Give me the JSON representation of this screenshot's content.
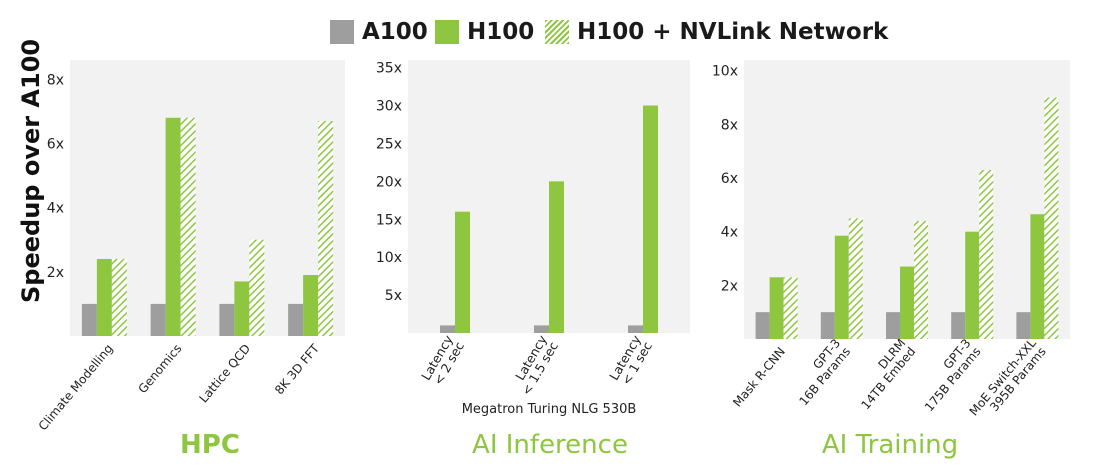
{
  "legend": {
    "items": [
      {
        "label": "A100",
        "color": "#9e9e9e",
        "pattern": "solid"
      },
      {
        "label": "H100",
        "color": "#8ec63f",
        "pattern": "solid"
      },
      {
        "label": "H100 + NVLink Network",
        "color": "#8ec63f",
        "pattern": "hatched"
      }
    ]
  },
  "y_axis_label": "Speedup over A100",
  "chart_data": [
    {
      "type": "bar",
      "title": "HPC",
      "categories": [
        "Climate Modelling",
        "Genomics",
        "Lattice QCD",
        "8K 3D FFT"
      ],
      "series": [
        {
          "name": "A100",
          "values": [
            1,
            1,
            1,
            1
          ]
        },
        {
          "name": "H100",
          "values": [
            2.4,
            6.8,
            1.7,
            1.9
          ]
        },
        {
          "name": "H100 + NVLink Network",
          "values": [
            2.4,
            6.8,
            3.0,
            6.7
          ]
        }
      ],
      "yticks": [
        "2x",
        "4x",
        "6x",
        "8x"
      ],
      "ylim": [
        0,
        8.6
      ],
      "xlabel": "",
      "grid": false
    },
    {
      "type": "bar",
      "title": "AI Inference",
      "categories": [
        "Latency\n< 2 sec",
        "Latency\n< 1.5 sec",
        "Latency\n< 1 sec"
      ],
      "series": [
        {
          "name": "A100",
          "values": [
            1,
            1,
            1
          ]
        },
        {
          "name": "H100",
          "values": [
            16,
            20,
            30
          ]
        }
      ],
      "yticks": [
        "5x",
        "10x",
        "15x",
        "20x",
        "25x",
        "30x",
        "35x"
      ],
      "ylim": [
        0,
        36
      ],
      "xlabel": "Megatron Turing NLG 530B",
      "grid": false
    },
    {
      "type": "bar",
      "title": "AI Training",
      "categories": [
        "Mask R-CNN",
        "GPT-3\n16B Params",
        "DLRM\n14TB Embed",
        "GPT-3\n175B Params",
        "MoE Switch-XXL\n395B Params"
      ],
      "series": [
        {
          "name": "A100",
          "values": [
            1,
            1,
            1,
            1,
            1
          ]
        },
        {
          "name": "H100",
          "values": [
            2.3,
            3.85,
            2.7,
            4.0,
            4.65
          ]
        },
        {
          "name": "H100 + NVLink Network",
          "values": [
            2.3,
            4.5,
            4.4,
            6.3,
            9.0
          ]
        }
      ],
      "yticks": [
        "2x",
        "4x",
        "6x",
        "8x",
        "10x"
      ],
      "ylim": [
        0,
        10.4
      ],
      "xlabel": "",
      "grid": false
    }
  ]
}
